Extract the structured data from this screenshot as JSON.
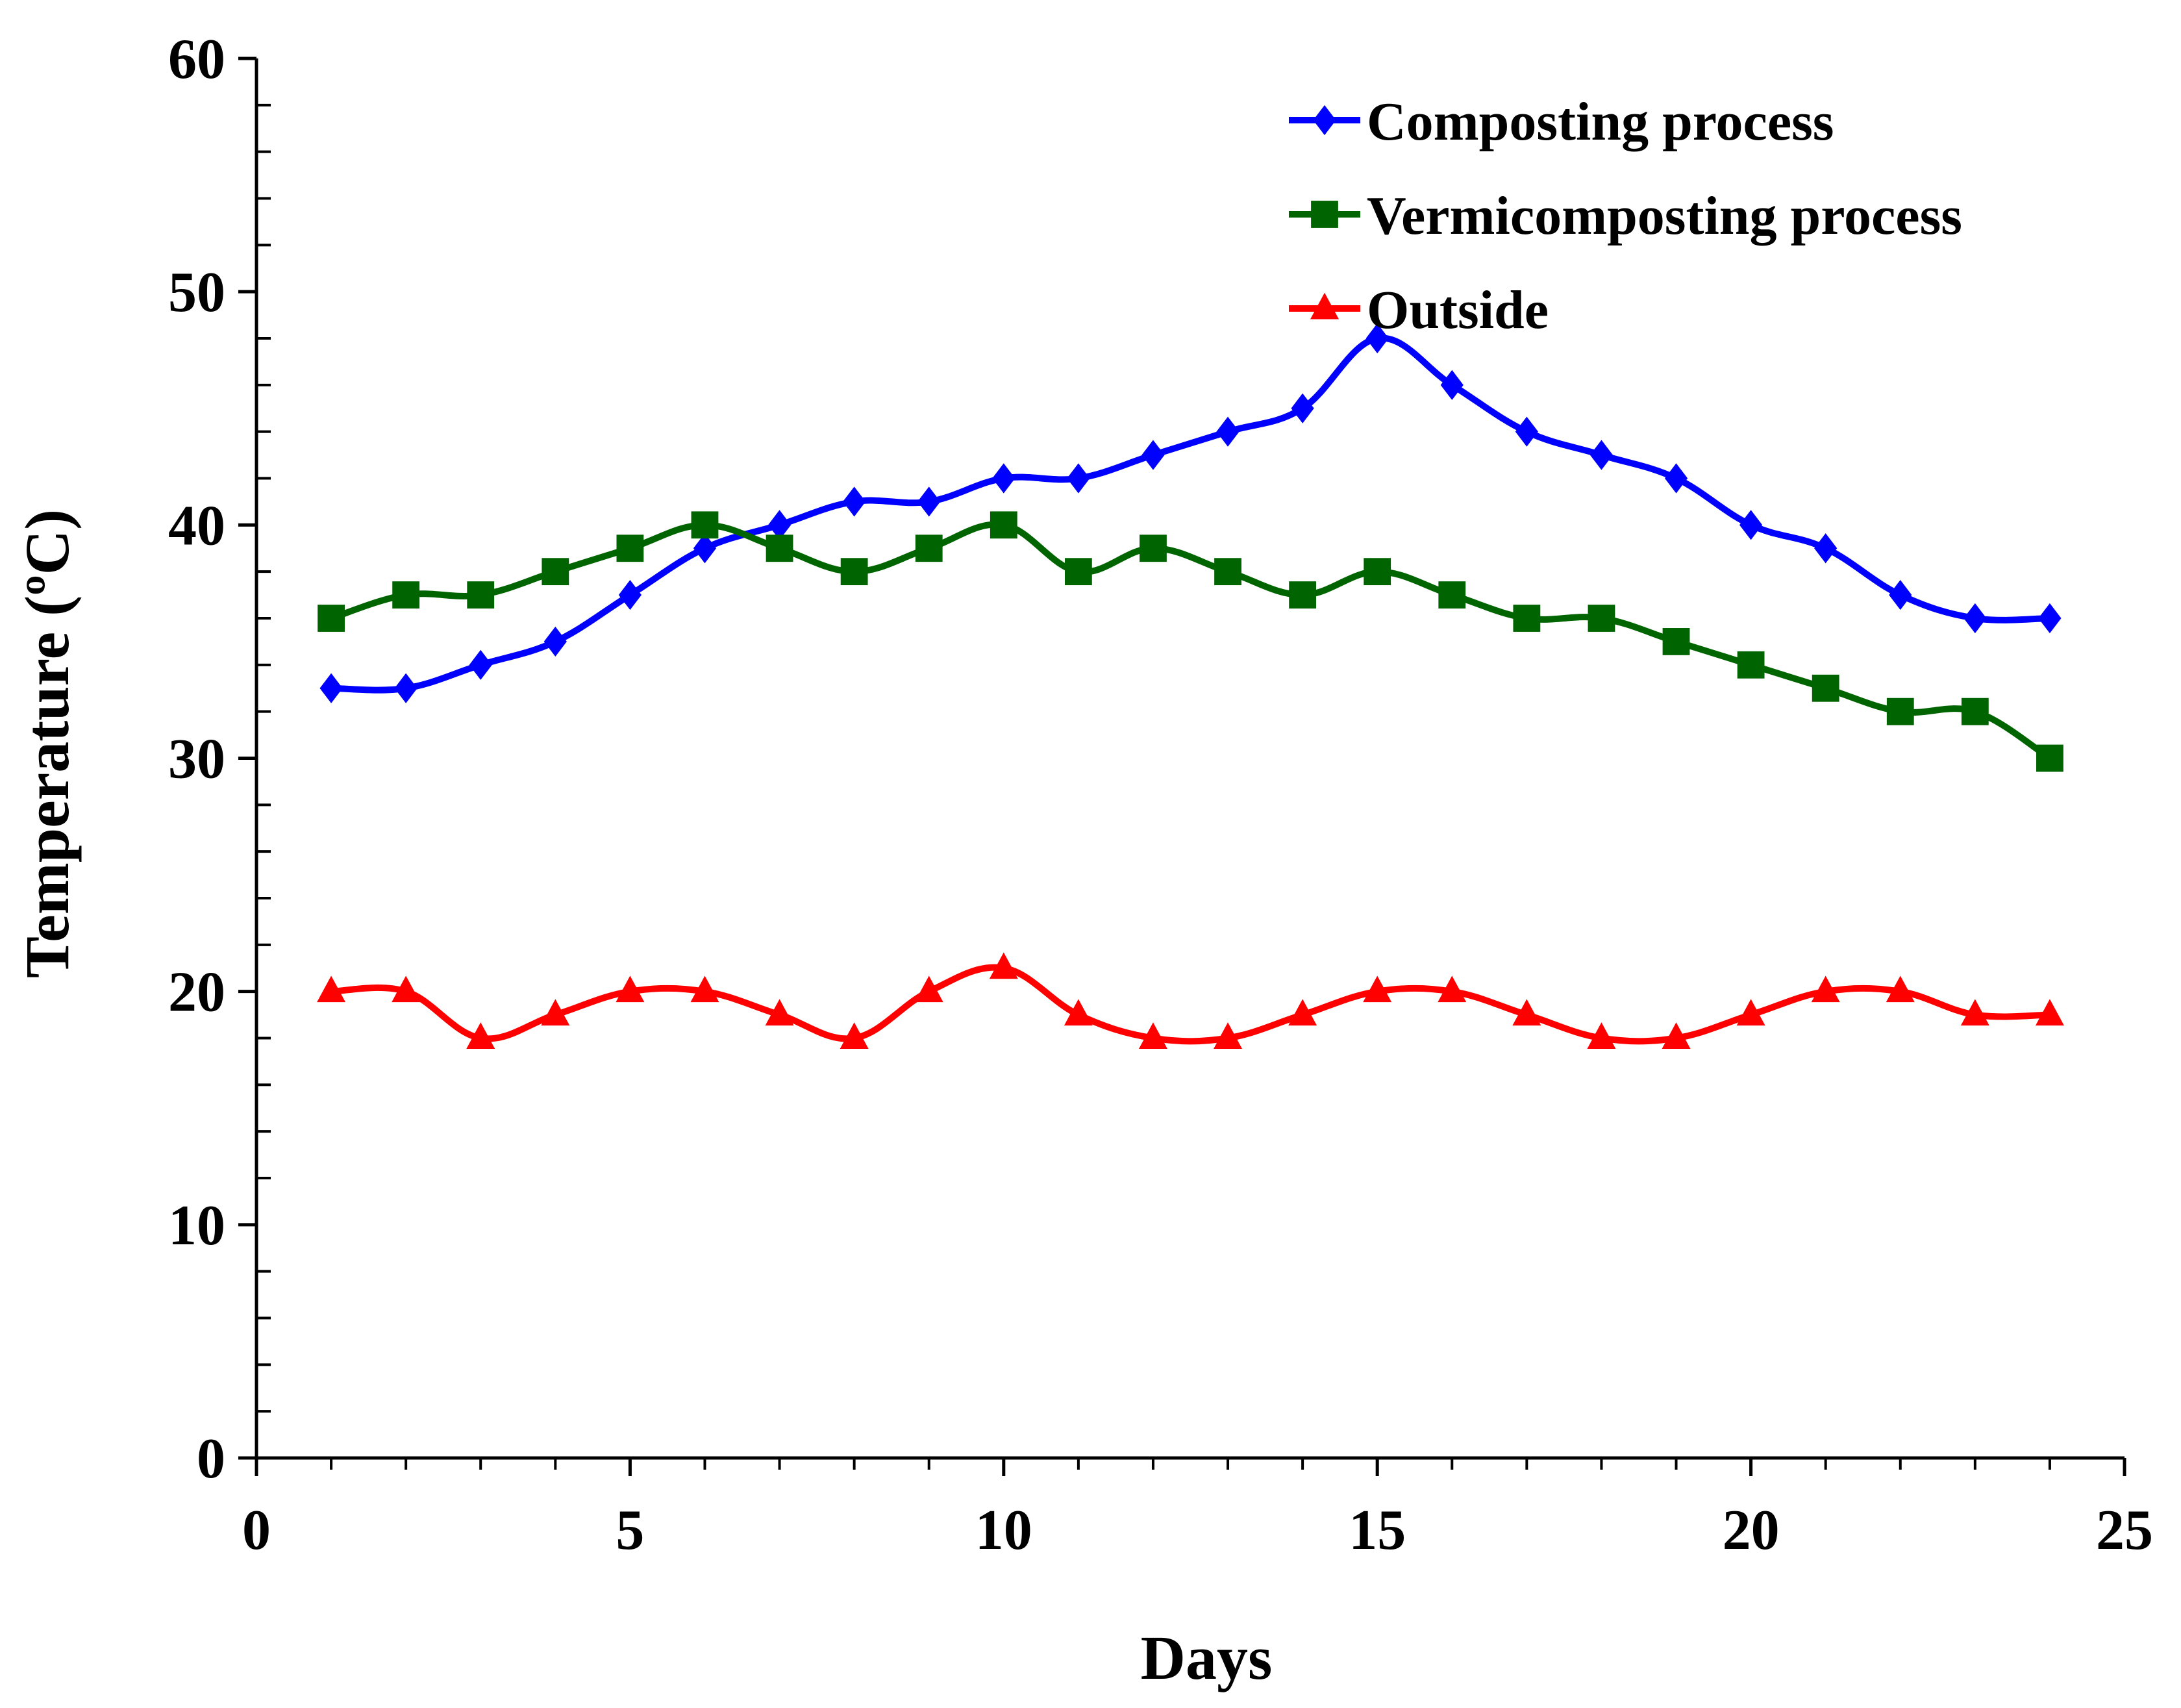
{
  "chart_data": {
    "type": "line",
    "title": "",
    "xlabel": "Days",
    "ylabel": "Temperature (ºC)",
    "xlim": [
      0,
      25
    ],
    "ylim": [
      0,
      60
    ],
    "x_ticks": [
      "0",
      "5",
      "10",
      "15",
      "20",
      "25"
    ],
    "y_ticks": [
      "0",
      "10",
      "20",
      "30",
      "40",
      "50",
      "60"
    ],
    "x_minor_step": 1,
    "y_minor_step": 2,
    "grid": false,
    "legend_position": "top-right",
    "smoothed": true,
    "x": [
      1,
      2,
      3,
      4,
      5,
      6,
      7,
      8,
      9,
      10,
      11,
      12,
      13,
      14,
      15,
      16,
      17,
      18,
      19,
      20,
      21,
      22,
      23,
      24
    ],
    "series": [
      {
        "name": "Composting process",
        "color": "#0000FF",
        "marker": "diamond",
        "values": [
          33,
          33,
          34,
          35,
          37,
          39,
          40,
          41,
          41,
          42,
          42,
          43,
          44,
          45,
          48,
          46,
          44,
          43,
          42,
          40,
          39,
          37,
          36,
          36
        ]
      },
      {
        "name": "Vermicomposting process",
        "color": "#006400",
        "marker": "square",
        "values": [
          36,
          37,
          37,
          38,
          39,
          40,
          39,
          38,
          39,
          40,
          38,
          39,
          38,
          37,
          38,
          37,
          36,
          36,
          35,
          34,
          33,
          32,
          32,
          30
        ]
      },
      {
        "name": "Outside",
        "color": "#FF0000",
        "marker": "triangle",
        "values": [
          20,
          20,
          18,
          19,
          20,
          20,
          19,
          18,
          20,
          21,
          19,
          18,
          18,
          19,
          20,
          20,
          19,
          18,
          18,
          19,
          20,
          20,
          19,
          19
        ]
      }
    ]
  }
}
